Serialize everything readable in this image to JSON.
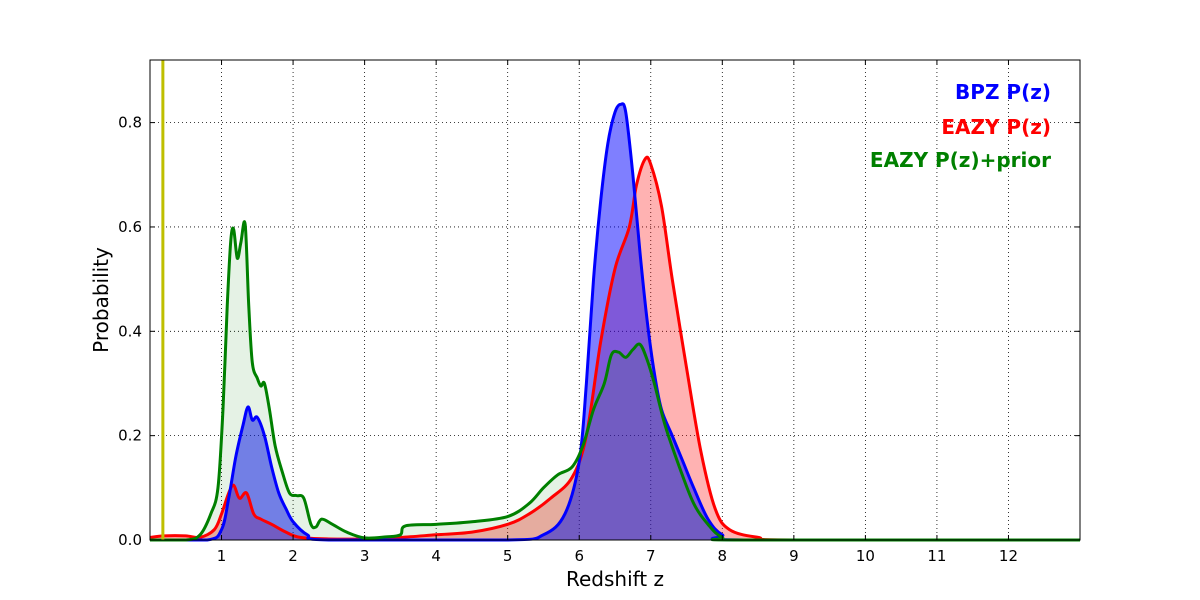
{
  "chart_data": {
    "type": "area",
    "title": "",
    "xlabel": "Redshift z",
    "ylabel": "Probability",
    "xlim": [
      0,
      13
    ],
    "ylim": [
      0,
      0.92
    ],
    "xticks": [
      1,
      2,
      3,
      4,
      5,
      6,
      7,
      8,
      9,
      10,
      11,
      12
    ],
    "yticks": [
      0.0,
      0.2,
      0.4,
      0.6,
      0.8
    ],
    "xtick_labels": [
      "1",
      "2",
      "3",
      "4",
      "5",
      "6",
      "7",
      "8",
      "9",
      "10",
      "11",
      "12"
    ],
    "ytick_labels": [
      "0.0",
      "0.2",
      "0.4",
      "0.6",
      "0.8"
    ],
    "grid": true,
    "legend_position": "top-right",
    "vline": {
      "x": 0.18,
      "color": "#bfbf00"
    },
    "series": [
      {
        "name": "BPZ P(z)",
        "color": "#0000ff",
        "fill": "#0000ff",
        "fill_alpha": 0.5,
        "points": [
          [
            0,
            0
          ],
          [
            0.8,
            0
          ],
          [
            1.0,
            0.02
          ],
          [
            1.1,
            0.08
          ],
          [
            1.2,
            0.16
          ],
          [
            1.3,
            0.22
          ],
          [
            1.37,
            0.255
          ],
          [
            1.43,
            0.23
          ],
          [
            1.5,
            0.235
          ],
          [
            1.6,
            0.2
          ],
          [
            1.7,
            0.14
          ],
          [
            1.8,
            0.09
          ],
          [
            1.9,
            0.06
          ],
          [
            2.0,
            0.035
          ],
          [
            2.2,
            0.01
          ],
          [
            2.5,
            0
          ],
          [
            5.0,
            0
          ],
          [
            5.5,
            0.01
          ],
          [
            5.8,
            0.05
          ],
          [
            6.0,
            0.15
          ],
          [
            6.1,
            0.3
          ],
          [
            6.2,
            0.5
          ],
          [
            6.3,
            0.65
          ],
          [
            6.4,
            0.76
          ],
          [
            6.5,
            0.82
          ],
          [
            6.58,
            0.835
          ],
          [
            6.65,
            0.82
          ],
          [
            6.75,
            0.7
          ],
          [
            6.85,
            0.55
          ],
          [
            6.95,
            0.42
          ],
          [
            7.05,
            0.32
          ],
          [
            7.15,
            0.25
          ],
          [
            7.3,
            0.2
          ],
          [
            7.45,
            0.15
          ],
          [
            7.6,
            0.1
          ],
          [
            7.8,
            0.04
          ],
          [
            8.0,
            0.01
          ],
          [
            8.3,
            0
          ],
          [
            13,
            0
          ]
        ]
      },
      {
        "name": "EAZY P(z)",
        "color": "#ff0000",
        "fill": "#ff0000",
        "fill_alpha": 0.3,
        "points": [
          [
            0,
            0.005
          ],
          [
            0.2,
            0.008
          ],
          [
            0.5,
            0.008
          ],
          [
            0.7,
            0.005
          ],
          [
            0.9,
            0.02
          ],
          [
            1.0,
            0.05
          ],
          [
            1.1,
            0.09
          ],
          [
            1.17,
            0.105
          ],
          [
            1.25,
            0.08
          ],
          [
            1.35,
            0.09
          ],
          [
            1.45,
            0.05
          ],
          [
            1.55,
            0.04
          ],
          [
            1.7,
            0.03
          ],
          [
            1.9,
            0.015
          ],
          [
            2.1,
            0.005
          ],
          [
            2.5,
            0.002
          ],
          [
            3.0,
            0.002
          ],
          [
            3.5,
            0.005
          ],
          [
            4.0,
            0.01
          ],
          [
            4.5,
            0.015
          ],
          [
            5.0,
            0.03
          ],
          [
            5.3,
            0.05
          ],
          [
            5.6,
            0.08
          ],
          [
            5.9,
            0.12
          ],
          [
            6.1,
            0.2
          ],
          [
            6.3,
            0.38
          ],
          [
            6.5,
            0.52
          ],
          [
            6.7,
            0.6
          ],
          [
            6.8,
            0.68
          ],
          [
            6.92,
            0.73
          ],
          [
            7.0,
            0.72
          ],
          [
            7.15,
            0.64
          ],
          [
            7.3,
            0.5
          ],
          [
            7.5,
            0.33
          ],
          [
            7.7,
            0.17
          ],
          [
            7.9,
            0.06
          ],
          [
            8.1,
            0.02
          ],
          [
            8.5,
            0.005
          ],
          [
            9.0,
            0
          ],
          [
            13,
            0
          ]
        ]
      },
      {
        "name": "EAZY P(z)+prior",
        "color": "#008000",
        "fill": "#008000",
        "fill_alpha": 0.1,
        "points": [
          [
            0,
            0
          ],
          [
            0.5,
            0
          ],
          [
            0.7,
            0.01
          ],
          [
            0.85,
            0.05
          ],
          [
            0.95,
            0.1
          ],
          [
            1.02,
            0.25
          ],
          [
            1.08,
            0.45
          ],
          [
            1.13,
            0.575
          ],
          [
            1.17,
            0.595
          ],
          [
            1.22,
            0.54
          ],
          [
            1.27,
            0.57
          ],
          [
            1.33,
            0.605
          ],
          [
            1.38,
            0.45
          ],
          [
            1.43,
            0.34
          ],
          [
            1.5,
            0.31
          ],
          [
            1.55,
            0.295
          ],
          [
            1.6,
            0.3
          ],
          [
            1.67,
            0.25
          ],
          [
            1.75,
            0.18
          ],
          [
            1.85,
            0.13
          ],
          [
            1.95,
            0.09
          ],
          [
            2.05,
            0.085
          ],
          [
            2.15,
            0.08
          ],
          [
            2.25,
            0.03
          ],
          [
            2.32,
            0.025
          ],
          [
            2.4,
            0.04
          ],
          [
            2.55,
            0.03
          ],
          [
            2.75,
            0.015
          ],
          [
            3.0,
            0.004
          ],
          [
            3.3,
            0.006
          ],
          [
            3.5,
            0.01
          ],
          [
            3.57,
            0.027
          ],
          [
            4.0,
            0.03
          ],
          [
            4.5,
            0.035
          ],
          [
            5.0,
            0.045
          ],
          [
            5.3,
            0.07
          ],
          [
            5.5,
            0.1
          ],
          [
            5.7,
            0.125
          ],
          [
            5.9,
            0.14
          ],
          [
            6.05,
            0.18
          ],
          [
            6.2,
            0.25
          ],
          [
            6.35,
            0.3
          ],
          [
            6.45,
            0.355
          ],
          [
            6.55,
            0.36
          ],
          [
            6.65,
            0.35
          ],
          [
            6.75,
            0.365
          ],
          [
            6.85,
            0.375
          ],
          [
            6.95,
            0.345
          ],
          [
            7.05,
            0.3
          ],
          [
            7.2,
            0.22
          ],
          [
            7.4,
            0.14
          ],
          [
            7.6,
            0.07
          ],
          [
            7.8,
            0.03
          ],
          [
            8.0,
            0.005
          ],
          [
            8.3,
            0
          ],
          [
            13,
            0
          ]
        ]
      }
    ]
  }
}
